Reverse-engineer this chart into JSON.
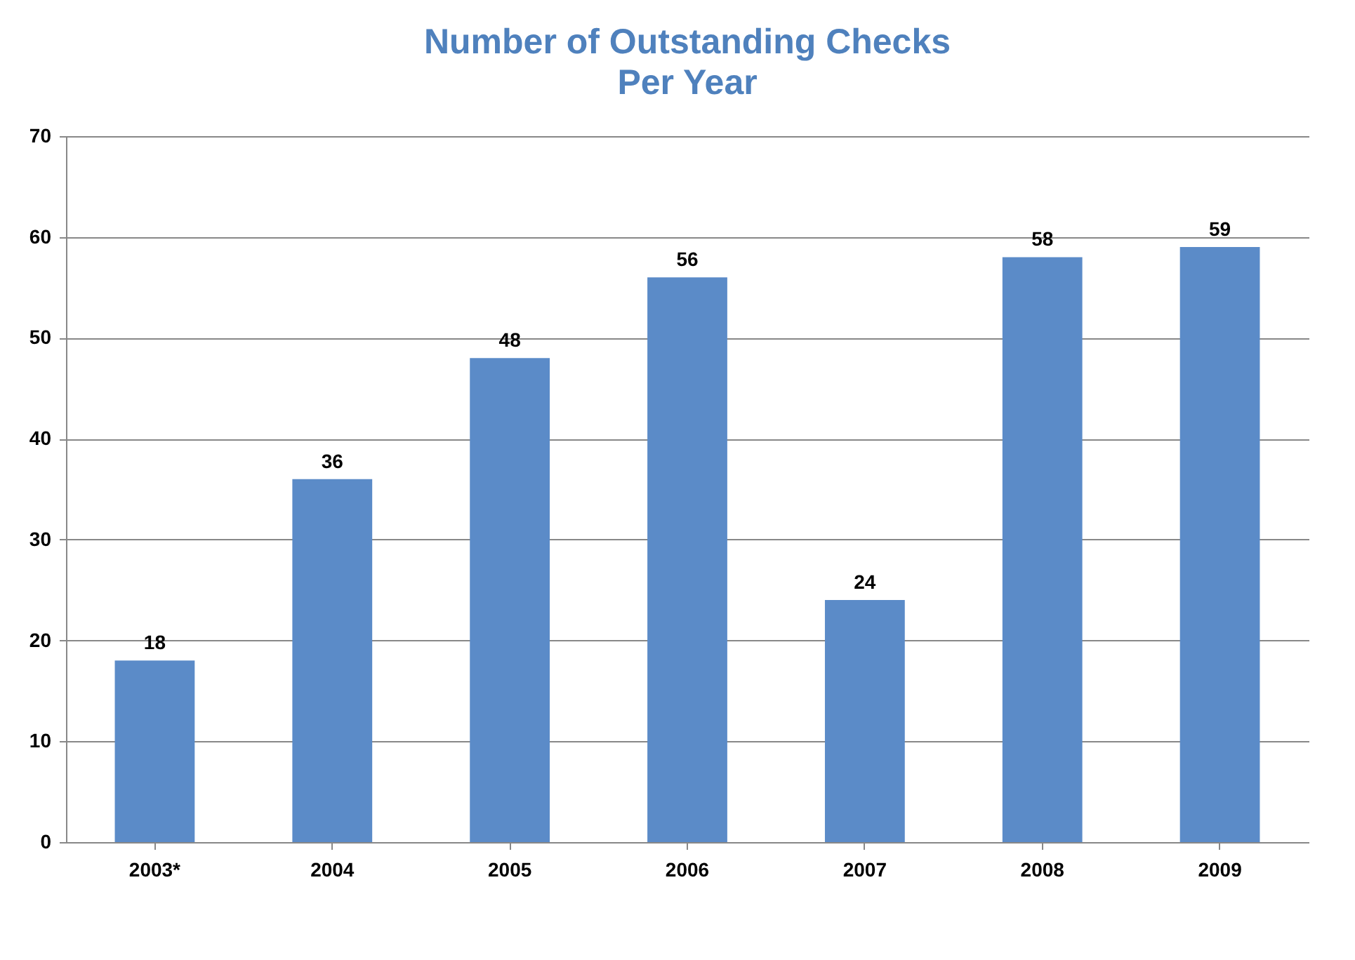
{
  "chart_data": {
    "type": "bar",
    "title": "Number of Outstanding Checks",
    "subtitle": "Per Year",
    "categories": [
      "2003*",
      "2004",
      "2005",
      "2006",
      "2007",
      "2008",
      "2009"
    ],
    "values": [
      18,
      36,
      48,
      56,
      24,
      58,
      59
    ],
    "color": "#5b8bc8",
    "ylim": [
      0,
      70
    ],
    "yticks": [
      0,
      10,
      20,
      30,
      40,
      50,
      60,
      70
    ],
    "grid": "y",
    "data_labels": true
  }
}
